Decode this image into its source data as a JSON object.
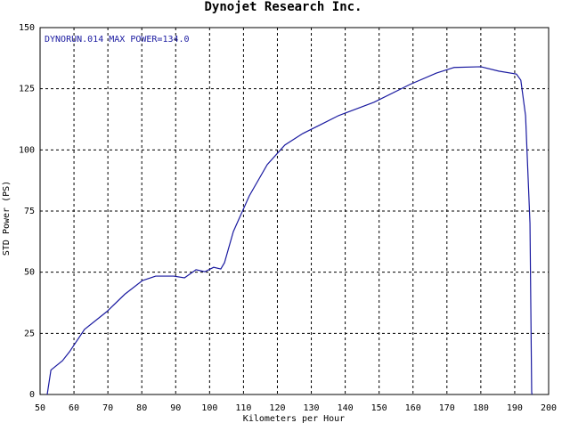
{
  "chart_data": {
    "type": "line",
    "title": "Dynojet  Research  Inc.",
    "annotation": "DYNORUN.014  MAX POWER=134.0",
    "x_label": "Kilometers per Hour",
    "y_label": "STD Power (PS)",
    "xlim": [
      50,
      200
    ],
    "ylim": [
      0,
      150
    ],
    "xticks": [
      50,
      60,
      70,
      80,
      90,
      100,
      110,
      120,
      130,
      140,
      150,
      160,
      170,
      180,
      190,
      200
    ],
    "yticks": [
      0,
      25,
      50,
      75,
      100,
      125,
      150
    ],
    "grid": true,
    "x": [
      52.1,
      53.2,
      56.6,
      58.7,
      63.1,
      69.7,
      75,
      80.2,
      84.1,
      89.4,
      92.6,
      96,
      98.6,
      101.2,
      103.3,
      104.4,
      107,
      111.7,
      117,
      122.2,
      127.5,
      132.7,
      138,
      148.5,
      159,
      166.9,
      172.1,
      180,
      185.3,
      190.5,
      191.8,
      193.2,
      194.5,
      195,
      195.1
    ],
    "series": [
      {
        "name": "STD Power",
        "color": "#1a1aa0",
        "values": [
          0,
          10,
          13.8,
          17.5,
          26.6,
          33.9,
          41,
          46.6,
          48.4,
          48.4,
          47.7,
          51,
          50.2,
          52,
          51.3,
          53.9,
          66.6,
          81.2,
          94,
          102,
          106.7,
          110.3,
          114,
          119.5,
          126.7,
          131.4,
          133.7,
          134,
          132.2,
          131,
          128.5,
          114,
          70,
          1,
          0
        ]
      }
    ]
  }
}
